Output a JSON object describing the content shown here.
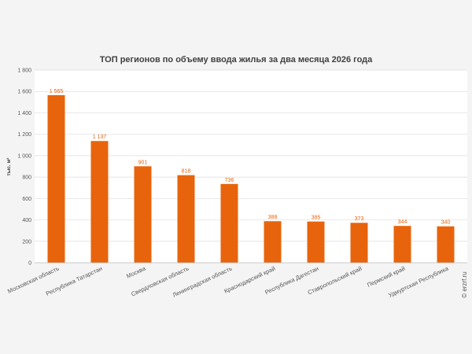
{
  "chart_data": {
    "type": "bar",
    "title": "ТОП регионов по объему ввода жилья за два месяца 2026 года",
    "ylabel": "тыс. м²",
    "xlabel": "",
    "ylim": [
      0,
      1800
    ],
    "yticks": [
      0,
      200,
      400,
      600,
      800,
      1000,
      1200,
      1400,
      1600,
      1800
    ],
    "ytick_labels": [
      "0",
      "200",
      "400",
      "600",
      "800",
      "1 000",
      "1 200",
      "1 400",
      "1 600",
      "1 800"
    ],
    "categories": [
      "Московская область",
      "Республика Татарстан",
      "Москва",
      "Свердловская область",
      "Ленинградская область",
      "Краснодарский край",
      "Республика Дагестан",
      "Ставропольский край",
      "Пермский край",
      "Удмуртская Республика"
    ],
    "values": [
      1565,
      1137,
      901,
      818,
      736,
      388,
      385,
      373,
      344,
      340
    ],
    "data_labels": [
      "1 565",
      "1 137",
      "901",
      "818",
      "736",
      "388",
      "385",
      "373",
      "344",
      "340"
    ],
    "grid": true,
    "bar_color": "#e8640c",
    "credit": "© erzrf.ru"
  }
}
